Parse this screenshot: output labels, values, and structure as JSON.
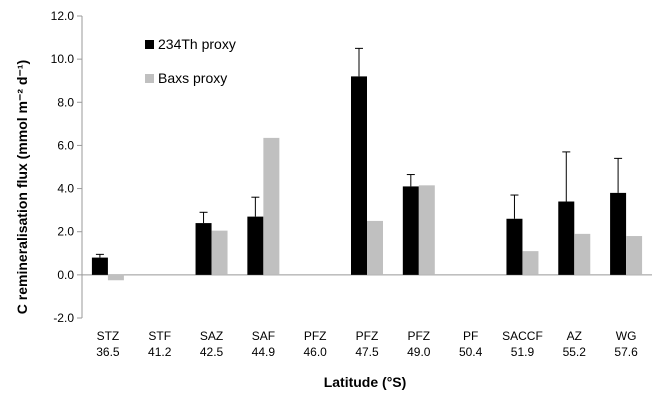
{
  "chart_data": {
    "type": "bar",
    "categories": [
      {
        "zone": "STZ",
        "lat": "36.5"
      },
      {
        "zone": "STF",
        "lat": "41.2"
      },
      {
        "zone": "SAZ",
        "lat": "42.5"
      },
      {
        "zone": "SAF",
        "lat": "44.9"
      },
      {
        "zone": "PFZ",
        "lat": "46.0"
      },
      {
        "zone": "PFZ",
        "lat": "47.5"
      },
      {
        "zone": "PFZ",
        "lat": "49.0"
      },
      {
        "zone": "PF",
        "lat": "50.4"
      },
      {
        "zone": "SACCF",
        "lat": "51.9"
      },
      {
        "zone": "AZ",
        "lat": "55.2"
      },
      {
        "zone": "WG",
        "lat": "57.6"
      }
    ],
    "series": [
      {
        "name": "234Th proxy",
        "color": "#000000",
        "values": [
          0.8,
          null,
          2.4,
          2.7,
          null,
          9.2,
          4.1,
          null,
          2.6,
          3.4,
          3.8
        ],
        "error_upper": [
          0.95,
          null,
          2.9,
          3.6,
          null,
          10.5,
          4.65,
          null,
          3.7,
          5.7,
          5.4
        ]
      },
      {
        "name": "Baxs proxy",
        "color": "#c0c0c0",
        "values": [
          -0.25,
          null,
          2.05,
          6.35,
          null,
          2.5,
          4.15,
          null,
          1.1,
          1.9,
          1.8
        ]
      }
    ],
    "ylabel": "C remineralisation flux (mmol m⁻² d⁻¹)",
    "xlabel": "Latitude (°S)",
    "ylim": [
      -2.0,
      12.0
    ],
    "yticks": [
      "-2.0",
      "0.0",
      "2.0",
      "4.0",
      "6.0",
      "8.0",
      "10.0",
      "12.0"
    ],
    "grid": false,
    "legend_position": "top-left"
  }
}
